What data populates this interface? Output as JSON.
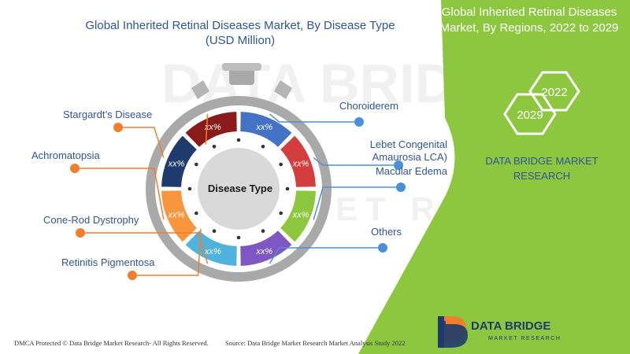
{
  "chart_data": {
    "type": "pie",
    "title": "Global Inherited Retinal Diseases Market, By Disease Type",
    "subtitle": "(USD Million)",
    "center_label": "Disease Type",
    "categories": [
      {
        "name": "Retinitis Pigmentosa",
        "value_label": "xx%",
        "color": "#8b1a1a"
      },
      {
        "name": "Choroiderem",
        "value_label": "xx%",
        "color": "#4472c4"
      },
      {
        "name": "Lebet Congenital Amaurosia LCA)",
        "value_label": "xx%",
        "color": "#d43d3d"
      },
      {
        "name": "Macular Edema",
        "value_label": "xx%",
        "color": "#8dc63f"
      },
      {
        "name": "Others",
        "value_label": "xx%",
        "color": "#7e57c2"
      },
      {
        "name": "Cone-Rod Dystrophy",
        "value_label": "xx%",
        "color": "#4fb3de"
      },
      {
        "name": "Achromatopsia",
        "value_label": "xx%",
        "color": "#f7963c"
      },
      {
        "name": "Stargardt’s Disease",
        "value_label": "xx%",
        "color": "#1f3b6e"
      }
    ],
    "legend_colors": {
      "left": "#f07f2d",
      "right": "#4a90d9"
    }
  },
  "side_panel": {
    "title_line1": "Global Inherited Retinal Diseases",
    "title_line2": "Market, By Regions, 2022 to 2029",
    "year_start": "2029",
    "year_end": "2022",
    "company_line1": "DATA BRIDGE MARKET",
    "company_line2": "RESEARCH",
    "color": "#8dc63f",
    "text_color": "#2f5597"
  },
  "logo": {
    "name": "DATA BRIDGE",
    "tagline": "MARKET RESEARCH"
  },
  "footer": {
    "dmca": "DMCA Protected © Data Bridge Market Research- All Rights Reserved.",
    "source": "Source: Data Bridge Market Research Market Analysis Study 2022"
  },
  "watermark": {
    "line1": "DATA BRIDGE",
    "line2": "MARKET RESEARCH"
  }
}
